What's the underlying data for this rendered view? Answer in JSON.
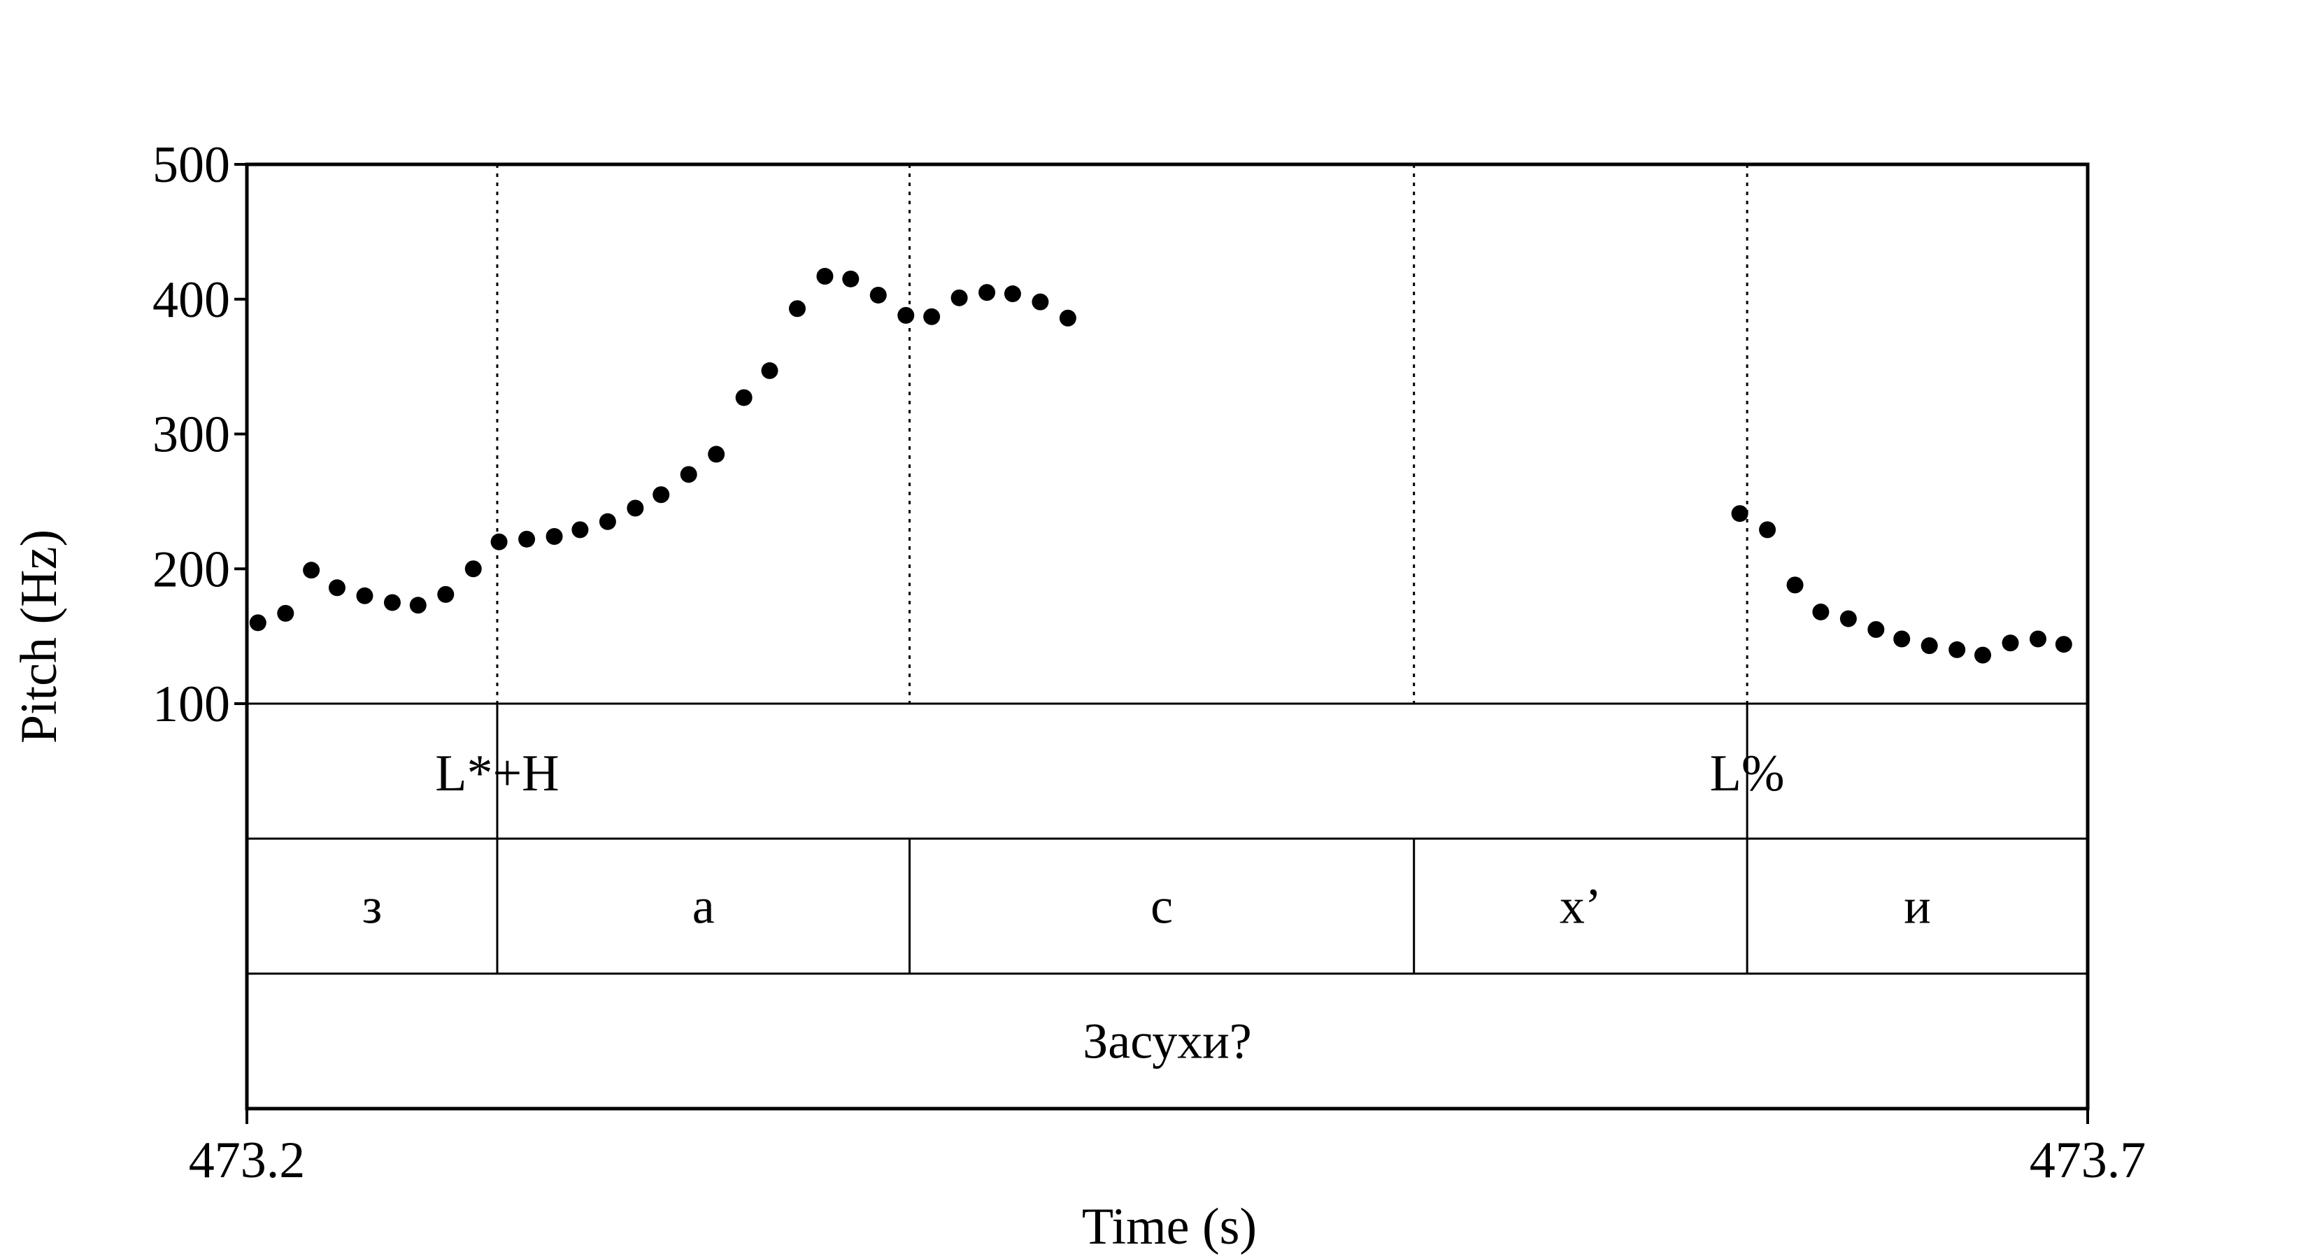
{
  "chart_data": {
    "type": "scatter",
    "xlabel": "Time (s)",
    "ylabel": "Pitch (Hz)",
    "xlim": [
      473.2,
      473.7
    ],
    "ylim": [
      100,
      500
    ],
    "x_tick_labels": [
      "473.2",
      "473.7"
    ],
    "y_ticks": [
      100,
      200,
      300,
      400,
      500
    ],
    "y_tick_labels": [
      "100",
      "200",
      "300",
      "400",
      "500"
    ],
    "grid": false,
    "series": [
      {
        "points": [
          [
            473.203,
            160
          ],
          [
            473.2105,
            167
          ],
          [
            473.2175,
            199
          ],
          [
            473.2245,
            186
          ],
          [
            473.232,
            180
          ],
          [
            473.2395,
            175
          ],
          [
            473.2465,
            173
          ],
          [
            473.254,
            181
          ],
          [
            473.2615,
            200
          ],
          [
            473.2685,
            220
          ],
          [
            473.276,
            222
          ],
          [
            473.2835,
            224
          ],
          [
            473.2905,
            229
          ],
          [
            473.298,
            235
          ],
          [
            473.3055,
            245
          ],
          [
            473.3125,
            255
          ],
          [
            473.32,
            270
          ],
          [
            473.3275,
            285
          ],
          [
            473.335,
            327
          ],
          [
            473.342,
            347
          ],
          [
            473.3495,
            393
          ],
          [
            473.357,
            417
          ],
          [
            473.364,
            415
          ],
          [
            473.3715,
            403
          ],
          [
            473.379,
            388
          ],
          [
            473.386,
            387
          ],
          [
            473.3935,
            401
          ],
          [
            473.401,
            405
          ],
          [
            473.408,
            404
          ],
          [
            473.4155,
            398
          ],
          [
            473.423,
            386
          ],
          [
            473.6055,
            241
          ],
          [
            473.613,
            229
          ],
          [
            473.6205,
            188
          ],
          [
            473.6275,
            168
          ],
          [
            473.635,
            163
          ],
          [
            473.6425,
            155
          ],
          [
            473.6495,
            148
          ],
          [
            473.657,
            143
          ],
          [
            473.6645,
            140
          ],
          [
            473.6715,
            136
          ],
          [
            473.679,
            145
          ],
          [
            473.6865,
            148
          ],
          [
            473.6935,
            144
          ]
        ]
      }
    ],
    "boundaries": [
      473.268,
      473.38,
      473.517,
      473.6075
    ],
    "tiers": [
      {
        "name": "tones",
        "points": [
          {
            "t": 473.268,
            "label": "L*+H"
          },
          {
            "t": 473.6075,
            "label": "L%"
          }
        ]
      },
      {
        "name": "phones",
        "intervals": [
          {
            "start": 473.2,
            "end": 473.268,
            "label": "з"
          },
          {
            "start": 473.268,
            "end": 473.38,
            "label": "а"
          },
          {
            "start": 473.38,
            "end": 473.517,
            "label": "с"
          },
          {
            "start": 473.517,
            "end": 473.6075,
            "label": "х’"
          },
          {
            "start": 473.6075,
            "end": 473.7,
            "label": "и"
          }
        ]
      },
      {
        "name": "word",
        "intervals": [
          {
            "start": 473.2,
            "end": 473.7,
            "label": "Засухи?"
          }
        ]
      }
    ]
  }
}
